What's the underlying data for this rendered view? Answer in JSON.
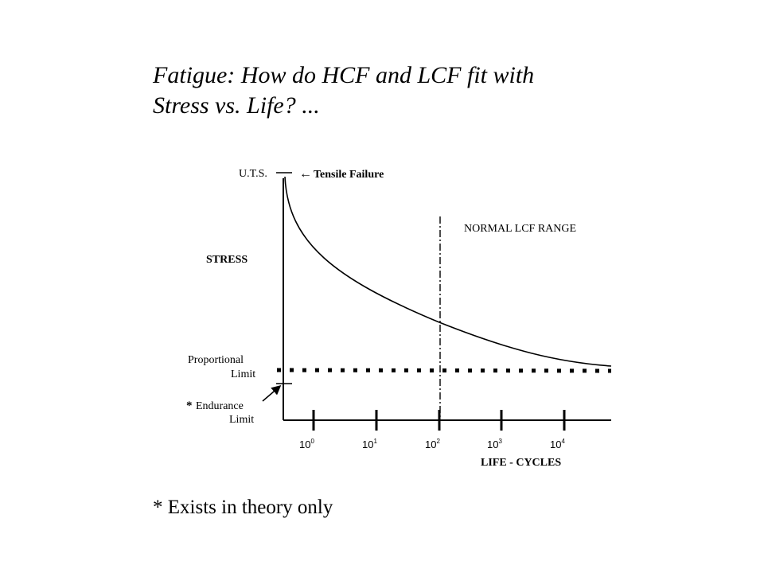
{
  "slide": {
    "title_line1": "Fatigue: How do HCF and LCF fit with",
    "title_line2": "Stress vs. Life? ...",
    "footnote": "* Exists in theory only"
  },
  "diagram": {
    "y_axis_label": "STRESS",
    "x_axis_label": "LIFE - CYCLES",
    "uts_label": "U.T.S.",
    "tensile_failure": "Tensile Failure",
    "lcf_range_label": "NORMAL LCF RANGE",
    "proportional_limit_line1": "Proportional",
    "proportional_limit_line2": "Limit",
    "endurance_limit_star": "*",
    "endurance_limit_line1": "Endurance",
    "endurance_limit_line2": "Limit",
    "ticks": [
      {
        "base": "10",
        "exp": "0"
      },
      {
        "base": "10",
        "exp": "1"
      },
      {
        "base": "10",
        "exp": "2"
      },
      {
        "base": "10",
        "exp": "3"
      },
      {
        "base": "10",
        "exp": "4"
      }
    ]
  }
}
